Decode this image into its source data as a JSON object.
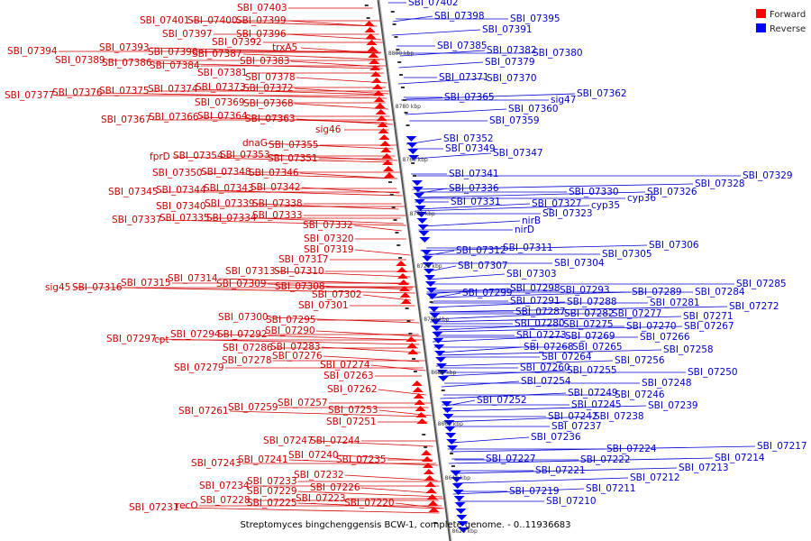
{
  "caption": "Streptomyces bingchenggensis BCW-1, complete genome. - 0..11936683",
  "legend": {
    "forward_label": "Forward",
    "reverse_label": "Reverse",
    "forward_color": "#ff0000",
    "reverse_color": "#0000ff"
  },
  "scale_ticks": [
    "8800 kbp",
    "8780 kbp",
    "8760 kbp",
    "8740 kbp",
    "8720 kbp",
    "8700 kbp",
    "8680 kbp",
    "8660 kbp",
    "8640 kbp",
    "8620 kbp"
  ],
  "forward_genes": [
    "SBI_07403",
    "SBI_07401",
    "SBI_07400",
    "SBI_07399",
    "SBI_07397",
    "SBI_07396",
    "SBI_07394",
    "SBI_07393",
    "SBI_07392",
    "trxA5",
    "SBI_07390",
    "SBI_07387",
    "SBI_07389",
    "SBI_07386",
    "SBI_07384",
    "SBI_07383",
    "SBI_07381",
    "SBI_07378",
    "SBI_07377",
    "SBI_07376",
    "SBI_07375",
    "SBI_07374",
    "SBI_07373",
    "SBI_07372",
    "SBI_07369",
    "SBI_07368",
    "SBI_07367",
    "SBI_07366",
    "SBI_07364",
    "SBI_07363",
    "sig46",
    "dnaG",
    "SBI_07355",
    "fprD",
    "SBI_07354",
    "SBI_07353",
    "SBI_07351",
    "SBI_07350",
    "SBI_07348",
    "SBI_07346",
    "SBI_07345",
    "SBI_07344",
    "SBI_07343",
    "SBI_07342",
    "SBI_07340",
    "SBI_07339",
    "SBI_07338",
    "SBI_07337",
    "SBI_07335",
    "SBI_07334",
    "SBI_07333",
    "SBI_07332",
    "SBI_07320",
    "SBI_07319",
    "SBI_07317",
    "SBI_07313",
    "SBI_07310",
    "SBI_07314",
    "sig45",
    "SBI_07316",
    "SBI_07315",
    "SBI_07309",
    "SBI_07308",
    "SBI_07302",
    "SBI_07301",
    "SBI_07300",
    "SBI_07295",
    "SBI_07297",
    "cpt",
    "SBI_07294",
    "SBI_07292",
    "SBI_07290",
    "SBI_07286",
    "SBI_07283",
    "SBI_07278",
    "SBI_07276",
    "SBI_07279",
    "SBI_07274",
    "SBI_07263",
    "SBI_07262",
    "SBI_07257",
    "SBI_07261",
    "SBI_07259",
    "SBI_07253",
    "SBI_07251",
    "SBI_07247",
    "SBI_07244",
    "SBI_07240",
    "SBI_07243",
    "SBI_07241",
    "SBI_07235",
    "SBI_07232",
    "SBI_07233",
    "SBI_07226",
    "SBI_07234",
    "SBI_07229",
    "SBI_07228",
    "SBI_07225",
    "SBI_07223",
    "SBI_07231",
    "recO",
    "SBI_07220"
  ],
  "reverse_genes": [
    "SBI_07402",
    "SBI_07398",
    "SBI_07395",
    "SBI_07391",
    "SBI_07385",
    "SBI_07382",
    "SBI_07380",
    "SBI_07379",
    "SBI_07371",
    "SBI_07370",
    "SBI_07365",
    "SBI_07362",
    "sig47",
    "SBI_07360",
    "SBI_07359",
    "SBI_07352",
    "SBI_07349",
    "SBI_07347",
    "SBI_07341",
    "SBI_07336",
    "SBI_07329",
    "SBI_07328",
    "SBI_07330",
    "SBI_07326",
    "SBI_07331",
    "SBI_07327",
    "cyp36",
    "cyp35",
    "SBI_07323",
    "nirB",
    "nirD",
    "SBI_07312",
    "SBI_07311",
    "SBI_07306",
    "SBI_07305",
    "SBI_07307",
    "SBI_07304",
    "SBI_07303",
    "SBI_07285",
    "SBI_07298",
    "SBI_07293",
    "SBI_07289",
    "SBI_07284",
    "SBI_07299",
    "SBI_07291",
    "SBI_07288",
    "SBI_07281",
    "SBI_07272",
    "SBI_07287",
    "SBI_07282",
    "SBI_07277",
    "SBI_07271",
    "SBI_07280",
    "SBI_07275",
    "SBI_07270",
    "SBI_07267",
    "SBI_07273",
    "SBI_07269",
    "SBI_07266",
    "SBI_07268",
    "SBI_07265",
    "SBI_07258",
    "SBI_07264",
    "SBI_07256",
    "SBI_07260",
    "SBI_07255",
    "SBI_07250",
    "SBI_07254",
    "SBI_07248",
    "SBI_07249",
    "SBI_07246",
    "SBI_07252",
    "SBI_07245",
    "SBI_07239",
    "SBI_07242",
    "SBI_07238",
    "SBI_07237",
    "SBI_07236",
    "SBI_07224",
    "SBI_07217",
    "SBI_07222",
    "SBI_07214",
    "SBI_07227",
    "SBI_07213",
    "SBI_07221",
    "SBI_07212",
    "SBI_07219",
    "SBI_07211",
    "SBI_07210"
  ]
}
